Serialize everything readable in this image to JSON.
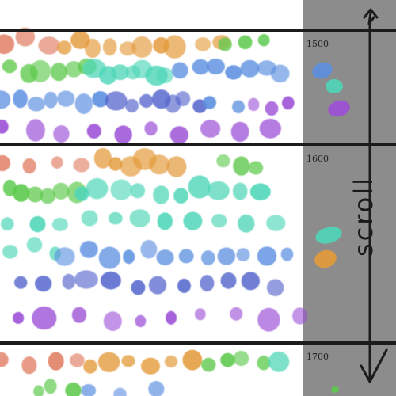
{
  "timeline": {
    "markers": [
      {
        "year": "1500"
      },
      {
        "year": "1600"
      },
      {
        "year": "1700"
      }
    ]
  },
  "scroll_panel": {
    "label": "scroll",
    "background": "#8c8c8c"
  },
  "palette": {
    "red": "#e07a5f",
    "orange": "#e39a3a",
    "green": "#5cc94a",
    "teal": "#4fd6b8",
    "blue": "#5b8fe0",
    "indigo": "#5566cc",
    "purple": "#9b4fd6"
  }
}
